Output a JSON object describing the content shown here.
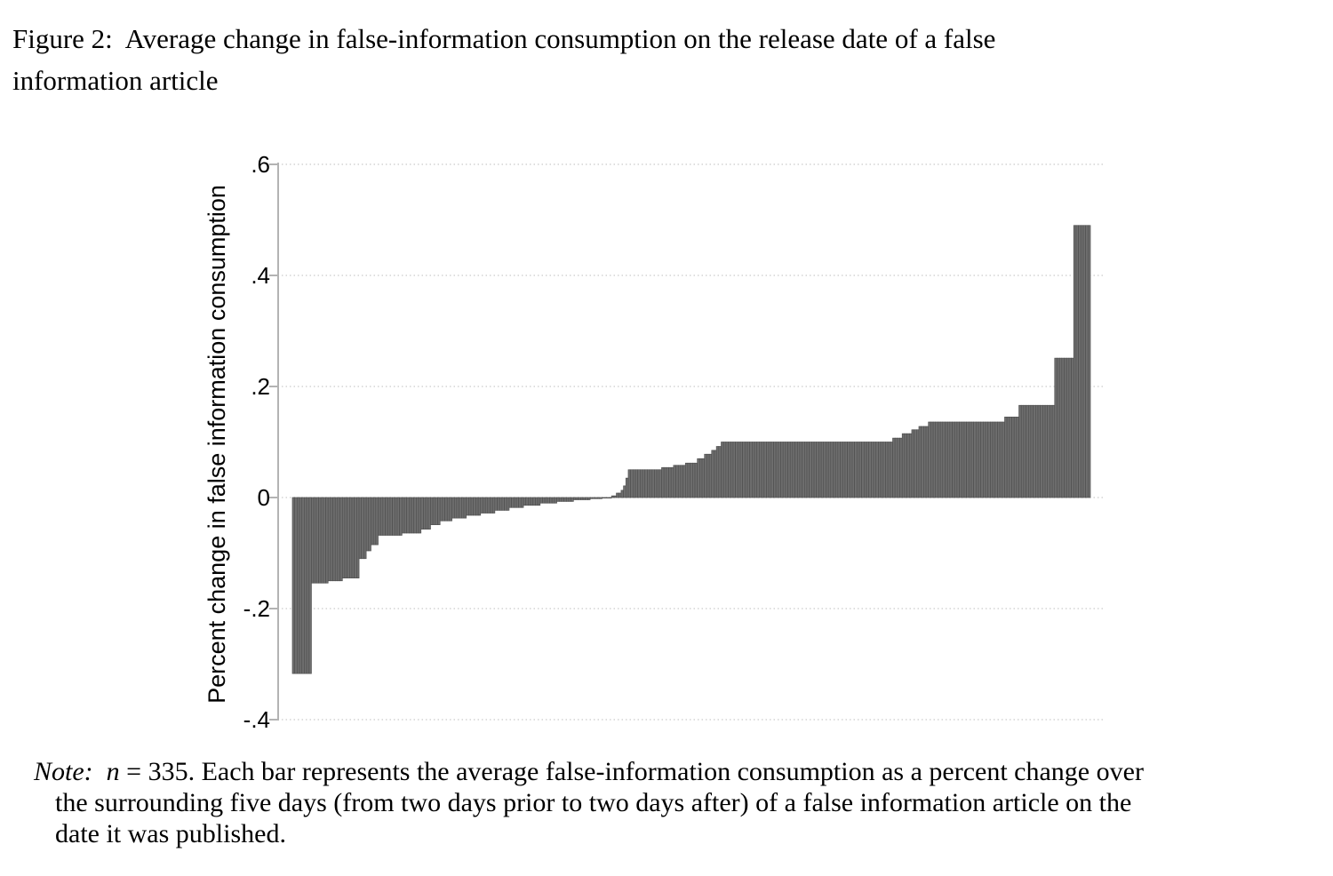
{
  "figure": {
    "title_line1": "Figure 2:  Average change in false-information consumption on the release date of a false",
    "title_line2": "information article"
  },
  "chart_data": {
    "type": "bar",
    "title": "Figure 2: Average change in false-information consumption on the release date of a false information article",
    "xlabel": "",
    "ylabel": "Percent change in false information consumption",
    "n": 335,
    "sort": "ascending",
    "ylim": [
      -0.4,
      0.6
    ],
    "ytick_values": [
      0.6,
      0.4,
      0.2,
      0,
      -0.2,
      -0.4
    ],
    "yticks": [
      ".6",
      ".4",
      ".2",
      "0",
      "-.2",
      "-.4"
    ],
    "grid": "dotted-horizontal",
    "legend": "none",
    "value_range": [
      -0.317,
      0.49
    ],
    "bar_color": "#6e6e6e",
    "bar_edge_color": "#505050",
    "axis_color": "#b3b3b3",
    "grid_color": "#d4d4d4",
    "values_rle_format": "[value, count] run-length pairs; expanding left-to-right yields all 335 sorted bar values",
    "values_rle": [
      [
        -0.317,
        8
      ],
      [
        -0.154,
        7
      ],
      [
        -0.15,
        6
      ],
      [
        -0.145,
        7
      ],
      [
        -0.11,
        3
      ],
      [
        -0.096,
        2
      ],
      [
        -0.085,
        3
      ],
      [
        -0.068,
        10
      ],
      [
        -0.064,
        8
      ],
      [
        -0.057,
        4
      ],
      [
        -0.049,
        4
      ],
      [
        -0.042,
        5
      ],
      [
        -0.037,
        6
      ],
      [
        -0.032,
        6
      ],
      [
        -0.028,
        6
      ],
      [
        -0.023,
        6
      ],
      [
        -0.018,
        6
      ],
      [
        -0.014,
        7
      ],
      [
        -0.01,
        7
      ],
      [
        -0.007,
        7
      ],
      [
        -0.004,
        7
      ],
      [
        -0.002,
        5
      ],
      [
        -0.001,
        4
      ],
      [
        0.003,
        2
      ],
      [
        0.008,
        2
      ],
      [
        0.013,
        1
      ],
      [
        0.021,
        1
      ],
      [
        0.035,
        1
      ],
      [
        0.05,
        14
      ],
      [
        0.054,
        5
      ],
      [
        0.058,
        5
      ],
      [
        0.062,
        5
      ],
      [
        0.07,
        3
      ],
      [
        0.078,
        3
      ],
      [
        0.085,
        2
      ],
      [
        0.092,
        2
      ],
      [
        0.1,
        72
      ],
      [
        0.107,
        4
      ],
      [
        0.115,
        4
      ],
      [
        0.122,
        3
      ],
      [
        0.128,
        4
      ],
      [
        0.136,
        32
      ],
      [
        0.145,
        6
      ],
      [
        0.166,
        15
      ],
      [
        0.251,
        8
      ],
      [
        0.49,
        7
      ]
    ]
  },
  "note": {
    "label": "Note:",
    "n_var": "n",
    "line1_rest": "= 335. Each bar represents the average false-information consumption as a percent change over",
    "line2": "the surrounding five days (from two days prior to two days after) of a false information article on the",
    "line3": "date it was published."
  }
}
